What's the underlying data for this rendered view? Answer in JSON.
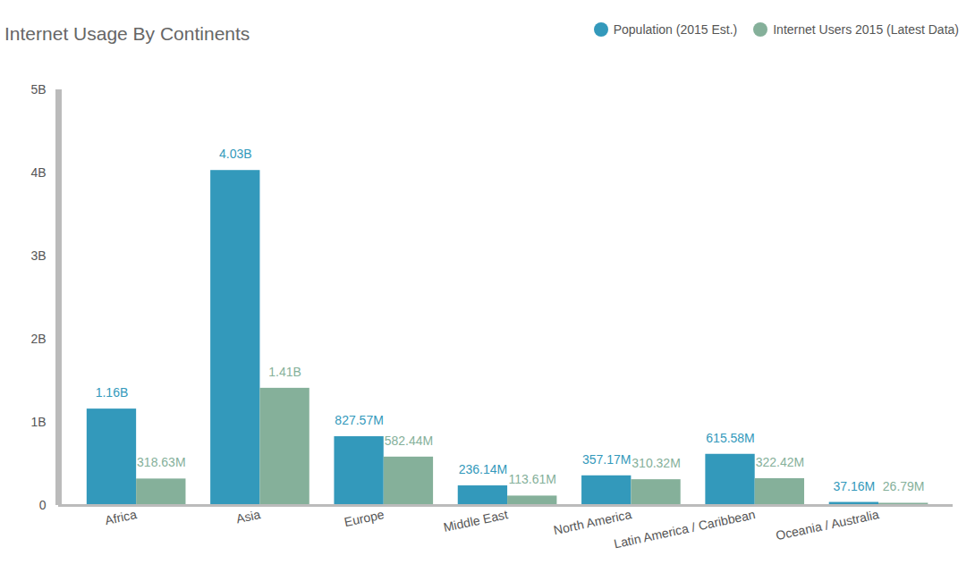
{
  "chart_data": {
    "type": "bar",
    "title": "Internet Usage By Continents",
    "categories": [
      "Africa",
      "Asia",
      "Europe",
      "Middle East",
      "North America",
      "Latin America / Caribbean",
      "Oceania / Australia"
    ],
    "series": [
      {
        "name": "Population (2015 Est.)",
        "color": "#3399bb",
        "values": [
          1160000000,
          4030000000,
          827570000,
          236140000,
          357170000,
          615580000,
          37160000
        ],
        "value_labels": [
          "1.16B",
          "4.03B",
          "827.57M",
          "236.14M",
          "357.17M",
          "615.58M",
          "37.16M"
        ]
      },
      {
        "name": "Internet Users 2015 (Latest Data)",
        "color": "#85b09a",
        "values": [
          318630000,
          1410000000,
          582440000,
          113610000,
          310320000,
          322420000,
          26790000
        ],
        "value_labels": [
          "318.63M",
          "1.41B",
          "582.44M",
          "113.61M",
          "310.32M",
          "322.42M",
          "26.79M"
        ]
      }
    ],
    "ylim": [
      0,
      5000000000
    ],
    "yticks": [
      0,
      {
        "value": 1000000000,
        "label": "1B"
      },
      {
        "value": 2000000000,
        "label": "2B"
      },
      {
        "value": 3000000000,
        "label": "3B"
      },
      {
        "value": 4000000000,
        "label": "4B"
      },
      {
        "value": 5000000000,
        "label": "5B"
      }
    ],
    "grid": false,
    "legend": "top-right",
    "data_labels": true
  }
}
